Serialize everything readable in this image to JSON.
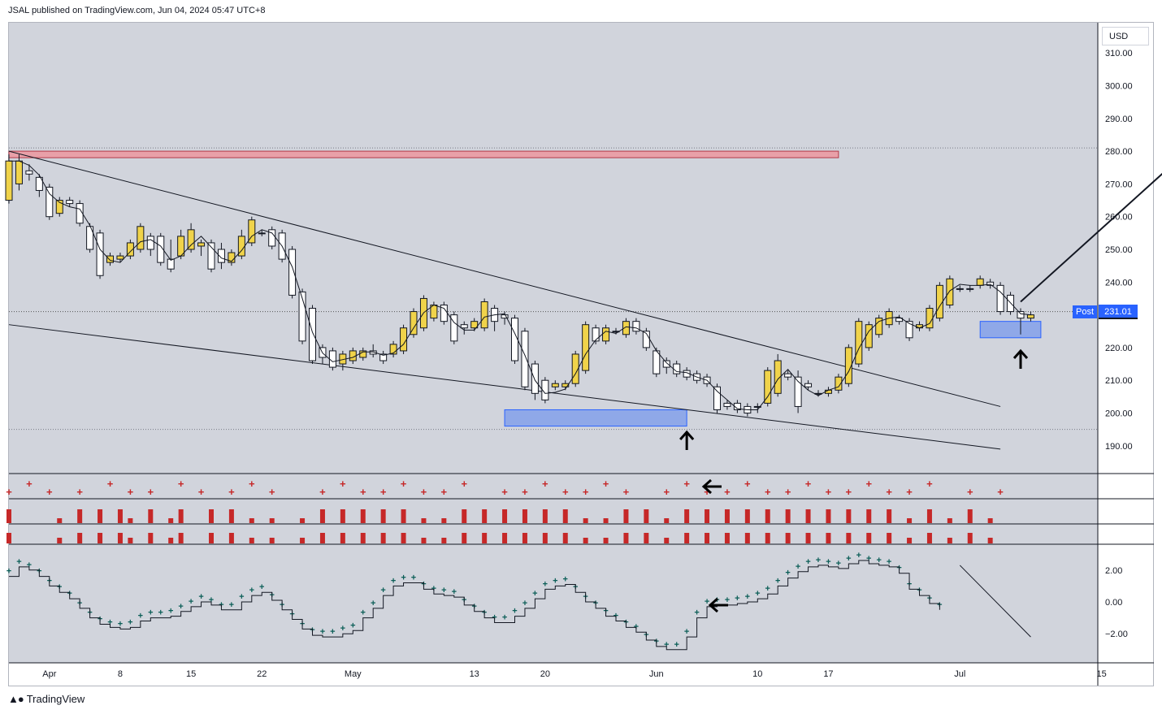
{
  "header": {
    "publisher_text": "JSAL published on TradingView.com, Jun 04, 2024 05:47 UTC+8"
  },
  "footer": {
    "brand": "TradingView",
    "logo_icon": "tradingview-logo-icon"
  },
  "axis": {
    "currency": "USD",
    "price_ticks": [
      "310.00",
      "300.00",
      "290.00",
      "280.00",
      "270.00",
      "260.00",
      "250.00",
      "240.00",
      "220.00",
      "210.00",
      "200.00",
      "190.00"
    ],
    "osc_ticks": [
      "2.00",
      "0.00",
      "−2.00"
    ],
    "date_ticks": [
      "Apr",
      "8",
      "15",
      "22",
      "May",
      "13",
      "20",
      "Jun",
      "10",
      "17",
      "Jul",
      "15"
    ]
  },
  "last_price": {
    "label": "Post",
    "value": "231.01"
  },
  "colors": {
    "background": "#d1d4dc",
    "up_candle": "#f0d34a",
    "down_candle": "#ffffff",
    "resistance_zone": "#e8a0a8",
    "support_zone": "#8fa8e8",
    "signal_red": "#c62828",
    "oscillator": "#0b5e57",
    "accent_blue": "#2962ff"
  },
  "chart_data": {
    "type": "candlestick",
    "ylim": [
      185,
      316
    ],
    "x_range_days": [
      -4,
      104
    ],
    "candles": [
      {
        "d": -4,
        "o": 265,
        "h": 279,
        "l": 264,
        "c": 277
      },
      {
        "d": -3,
        "o": 270,
        "h": 279,
        "l": 268,
        "c": 277
      },
      {
        "d": -2,
        "o": 274,
        "h": 276,
        "l": 271,
        "c": 273
      },
      {
        "d": -1,
        "o": 272,
        "h": 273,
        "l": 266,
        "c": 268
      },
      {
        "d": 0,
        "o": 269,
        "h": 270,
        "l": 259,
        "c": 260
      },
      {
        "d": 1,
        "o": 261,
        "h": 266,
        "l": 260,
        "c": 265
      },
      {
        "d": 2,
        "o": 265,
        "h": 266,
        "l": 263,
        "c": 264
      },
      {
        "d": 3,
        "o": 264,
        "h": 265,
        "l": 257,
        "c": 258
      },
      {
        "d": 4,
        "o": 257,
        "h": 258,
        "l": 249,
        "c": 250
      },
      {
        "d": 5,
        "o": 255,
        "h": 256,
        "l": 241,
        "c": 242
      },
      {
        "d": 6,
        "o": 246,
        "h": 249,
        "l": 245,
        "c": 248
      },
      {
        "d": 7,
        "o": 247,
        "h": 249,
        "l": 246,
        "c": 248
      },
      {
        "d": 8,
        "o": 248,
        "h": 253,
        "l": 247,
        "c": 252
      },
      {
        "d": 9,
        "o": 250,
        "h": 258,
        "l": 249,
        "c": 257
      },
      {
        "d": 10,
        "o": 254,
        "h": 255,
        "l": 248,
        "c": 250
      },
      {
        "d": 11,
        "o": 254,
        "h": 255,
        "l": 245,
        "c": 246
      },
      {
        "d": 12,
        "o": 247,
        "h": 253,
        "l": 243,
        "c": 244
      },
      {
        "d": 13,
        "o": 248,
        "h": 256,
        "l": 247,
        "c": 254
      },
      {
        "d": 14,
        "o": 250,
        "h": 258,
        "l": 249,
        "c": 256
      },
      {
        "d": 15,
        "o": 251,
        "h": 253,
        "l": 248,
        "c": 252
      },
      {
        "d": 16,
        "o": 252,
        "h": 253,
        "l": 243,
        "c": 244
      },
      {
        "d": 17,
        "o": 250,
        "h": 252,
        "l": 244,
        "c": 246
      },
      {
        "d": 18,
        "o": 246,
        "h": 250,
        "l": 245,
        "c": 249
      },
      {
        "d": 19,
        "o": 248,
        "h": 256,
        "l": 247,
        "c": 254
      },
      {
        "d": 20,
        "o": 252,
        "h": 260,
        "l": 251,
        "c": 259
      },
      {
        "d": 21,
        "o": 255,
        "h": 256,
        "l": 254,
        "c": 255
      },
      {
        "d": 22,
        "o": 256,
        "h": 257,
        "l": 250,
        "c": 251
      },
      {
        "d": 23,
        "o": 255,
        "h": 256,
        "l": 246,
        "c": 247
      },
      {
        "d": 24,
        "o": 250,
        "h": 251,
        "l": 235,
        "c": 236
      },
      {
        "d": 25,
        "o": 237,
        "h": 238,
        "l": 221,
        "c": 222
      },
      {
        "d": 26,
        "o": 232,
        "h": 233,
        "l": 215,
        "c": 216
      },
      {
        "d": 27,
        "o": 220,
        "h": 221,
        "l": 215,
        "c": 217
      },
      {
        "d": 28,
        "o": 219,
        "h": 220,
        "l": 213,
        "c": 214
      },
      {
        "d": 29,
        "o": 215,
        "h": 219,
        "l": 213,
        "c": 218
      },
      {
        "d": 30,
        "o": 216,
        "h": 220,
        "l": 215,
        "c": 219
      },
      {
        "d": 31,
        "o": 217,
        "h": 220,
        "l": 216,
        "c": 219
      },
      {
        "d": 32,
        "o": 219,
        "h": 221,
        "l": 217,
        "c": 218
      },
      {
        "d": 33,
        "o": 218,
        "h": 219,
        "l": 215,
        "c": 216
      },
      {
        "d": 34,
        "o": 218,
        "h": 222,
        "l": 217,
        "c": 221
      },
      {
        "d": 35,
        "o": 219,
        "h": 227,
        "l": 218,
        "c": 226
      },
      {
        "d": 36,
        "o": 224,
        "h": 232,
        "l": 223,
        "c": 231
      },
      {
        "d": 37,
        "o": 226,
        "h": 236,
        "l": 225,
        "c": 235
      },
      {
        "d": 38,
        "o": 229,
        "h": 234,
        "l": 228,
        "c": 233
      },
      {
        "d": 39,
        "o": 233,
        "h": 234,
        "l": 227,
        "c": 228
      },
      {
        "d": 40,
        "o": 230,
        "h": 231,
        "l": 221,
        "c": 222
      },
      {
        "d": 41,
        "o": 227,
        "h": 228,
        "l": 224,
        "c": 226
      },
      {
        "d": 42,
        "o": 226,
        "h": 229,
        "l": 225,
        "c": 228
      },
      {
        "d": 43,
        "o": 226,
        "h": 235,
        "l": 225,
        "c": 234
      },
      {
        "d": 44,
        "o": 232,
        "h": 233,
        "l": 225,
        "c": 228
      },
      {
        "d": 45,
        "o": 230,
        "h": 231,
        "l": 227,
        "c": 229
      },
      {
        "d": 46,
        "o": 229,
        "h": 230,
        "l": 215,
        "c": 216
      },
      {
        "d": 47,
        "o": 225,
        "h": 226,
        "l": 207,
        "c": 208
      },
      {
        "d": 48,
        "o": 215,
        "h": 216,
        "l": 204,
        "c": 206
      },
      {
        "d": 49,
        "o": 210,
        "h": 211,
        "l": 203,
        "c": 204
      },
      {
        "d": 50,
        "o": 208,
        "h": 210,
        "l": 207,
        "c": 209
      },
      {
        "d": 51,
        "o": 208,
        "h": 210,
        "l": 207,
        "c": 209
      },
      {
        "d": 52,
        "o": 209,
        "h": 219,
        "l": 208,
        "c": 218
      },
      {
        "d": 53,
        "o": 213,
        "h": 228,
        "l": 212,
        "c": 227
      },
      {
        "d": 54,
        "o": 226,
        "h": 227,
        "l": 221,
        "c": 222
      },
      {
        "d": 55,
        "o": 222,
        "h": 227,
        "l": 221,
        "c": 226
      },
      {
        "d": 56,
        "o": 225,
        "h": 226,
        "l": 224,
        "c": 225
      },
      {
        "d": 57,
        "o": 224,
        "h": 229,
        "l": 223,
        "c": 228
      },
      {
        "d": 58,
        "o": 228,
        "h": 229,
        "l": 224,
        "c": 225
      },
      {
        "d": 59,
        "o": 225,
        "h": 226,
        "l": 219,
        "c": 220
      },
      {
        "d": 60,
        "o": 219,
        "h": 220,
        "l": 211,
        "c": 212
      },
      {
        "d": 61,
        "o": 216,
        "h": 217,
        "l": 212,
        "c": 214
      },
      {
        "d": 62,
        "o": 215,
        "h": 216,
        "l": 211,
        "c": 212
      },
      {
        "d": 63,
        "o": 213,
        "h": 214,
        "l": 210,
        "c": 211
      },
      {
        "d": 64,
        "o": 212,
        "h": 213,
        "l": 209,
        "c": 210
      },
      {
        "d": 65,
        "o": 211,
        "h": 212,
        "l": 208,
        "c": 209
      },
      {
        "d": 66,
        "o": 208,
        "h": 209,
        "l": 200,
        "c": 201
      },
      {
        "d": 67,
        "o": 203,
        "h": 204,
        "l": 201,
        "c": 202
      },
      {
        "d": 68,
        "o": 203,
        "h": 204,
        "l": 200,
        "c": 201
      },
      {
        "d": 69,
        "o": 202,
        "h": 203,
        "l": 199,
        "c": 200
      },
      {
        "d": 70,
        "o": 202,
        "h": 203,
        "l": 200,
        "c": 202
      },
      {
        "d": 71,
        "o": 203,
        "h": 214,
        "l": 202,
        "c": 213
      },
      {
        "d": 72,
        "o": 206,
        "h": 218,
        "l": 205,
        "c": 216
      },
      {
        "d": 73,
        "o": 212,
        "h": 213,
        "l": 210,
        "c": 211
      },
      {
        "d": 74,
        "o": 211,
        "h": 213,
        "l": 200,
        "c": 202
      },
      {
        "d": 75,
        "o": 209,
        "h": 210,
        "l": 207,
        "c": 208
      },
      {
        "d": 76,
        "o": 206,
        "h": 207,
        "l": 205,
        "c": 206
      },
      {
        "d": 77,
        "o": 206,
        "h": 208,
        "l": 205,
        "c": 207
      },
      {
        "d": 78,
        "o": 207,
        "h": 212,
        "l": 206,
        "c": 211
      },
      {
        "d": 79,
        "o": 209,
        "h": 221,
        "l": 208,
        "c": 220
      },
      {
        "d": 80,
        "o": 215,
        "h": 229,
        "l": 214,
        "c": 228
      },
      {
        "d": 81,
        "o": 220,
        "h": 228,
        "l": 219,
        "c": 227
      },
      {
        "d": 82,
        "o": 224,
        "h": 230,
        "l": 223,
        "c": 229
      },
      {
        "d": 83,
        "o": 227,
        "h": 232,
        "l": 226,
        "c": 231
      },
      {
        "d": 84,
        "o": 229,
        "h": 230,
        "l": 227,
        "c": 228
      },
      {
        "d": 85,
        "o": 228,
        "h": 229,
        "l": 222,
        "c": 223
      },
      {
        "d": 86,
        "o": 226,
        "h": 228,
        "l": 225,
        "c": 227
      },
      {
        "d": 87,
        "o": 226,
        "h": 233,
        "l": 225,
        "c": 232
      },
      {
        "d": 88,
        "o": 229,
        "h": 240,
        "l": 228,
        "c": 239
      },
      {
        "d": 89,
        "o": 233,
        "h": 242,
        "l": 232,
        "c": 241
      },
      {
        "d": 90,
        "o": 238,
        "h": 239,
        "l": 237,
        "c": 238
      },
      {
        "d": 91,
        "o": 238,
        "h": 239,
        "l": 237,
        "c": 238
      },
      {
        "d": 92,
        "o": 239,
        "h": 242,
        "l": 238,
        "c": 241
      },
      {
        "d": 93,
        "o": 240,
        "h": 241,
        "l": 238,
        "c": 239
      },
      {
        "d": 94,
        "o": 239,
        "h": 240,
        "l": 230,
        "c": 231
      },
      {
        "d": 95,
        "o": 236,
        "h": 237,
        "l": 230,
        "c": 231
      },
      {
        "d": 96,
        "o": 231,
        "h": 232,
        "l": 224,
        "c": 229
      },
      {
        "d": 97,
        "o": 229,
        "h": 231,
        "l": 228,
        "c": 230
      }
    ],
    "oscillator": [
      1.6,
      2.2,
      2.0,
      1.6,
      1.0,
      0.6,
      0.2,
      -0.4,
      -1.0,
      -1.4,
      -1.6,
      -1.7,
      -1.6,
      -1.2,
      -1.0,
      -1.0,
      -0.9,
      -0.6,
      -0.3,
      0.0,
      -0.2,
      -0.5,
      -0.5,
      0.0,
      0.4,
      0.6,
      0.1,
      -0.5,
      -1.1,
      -1.7,
      -2.1,
      -2.2,
      -2.2,
      -2.0,
      -1.8,
      -1.0,
      -0.4,
      0.4,
      1.0,
      1.2,
      1.2,
      0.8,
      0.5,
      0.4,
      0.3,
      -0.2,
      -0.6,
      -1.0,
      -1.3,
      -1.3,
      -0.9,
      -0.4,
      0.2,
      0.8,
      1.0,
      1.1,
      0.6,
      0.0,
      -0.4,
      -0.9,
      -1.2,
      -1.6,
      -1.9,
      -2.4,
      -2.8,
      -3.0,
      -3.0,
      -2.2,
      -1.0,
      -0.3,
      -0.2,
      -0.2,
      -0.1,
      0.0,
      0.2,
      0.5,
      1.0,
      1.5,
      1.9,
      2.2,
      2.3,
      2.2,
      2.1,
      2.4,
      2.6,
      2.4,
      2.3,
      2.2,
      1.8,
      0.8,
      0.4,
      -0.1,
      -0.5
    ]
  },
  "annotations": {
    "resistance_zone": {
      "from_day": -4,
      "to_day": 78,
      "low": 278,
      "high": 280
    },
    "support_zone_1": {
      "from_day": 45,
      "to_day": 63,
      "low": 196,
      "high": 201
    },
    "support_zone_2": {
      "from_day": 92,
      "to_day": 98,
      "low": 223,
      "high": 228
    },
    "upper_trendline": {
      "d1": -4,
      "p1": 280,
      "d2": 94,
      "p2": 202
    },
    "lower_trendline": {
      "d1": -4,
      "p1": 227,
      "d2": 94,
      "p2": 189
    },
    "target_arrow": {
      "d1": 96,
      "p1": 234,
      "d2": 120,
      "p2": 301
    },
    "signals": {
      "markers": [
        -4,
        -2,
        0,
        3,
        6,
        8,
        10,
        13,
        15,
        18,
        20,
        22,
        27,
        29,
        31,
        33,
        35,
        37,
        39,
        41,
        45,
        47,
        49,
        51,
        53,
        55,
        57,
        61,
        63,
        65,
        67,
        69,
        71,
        73,
        75,
        77,
        79,
        81,
        83,
        85,
        87,
        91,
        94
      ],
      "bars_full": [
        -4,
        3,
        5,
        7,
        10,
        13,
        16,
        18,
        27,
        29,
        31,
        33,
        35,
        41,
        43,
        45,
        47,
        49,
        51,
        57,
        59,
        63,
        65,
        67,
        69,
        71,
        73,
        75,
        77,
        79,
        81,
        83,
        87,
        91
      ],
      "bars_half": [
        1,
        8,
        12,
        20,
        22,
        25,
        37,
        39,
        53,
        55,
        61,
        85,
        89,
        93
      ]
    }
  }
}
